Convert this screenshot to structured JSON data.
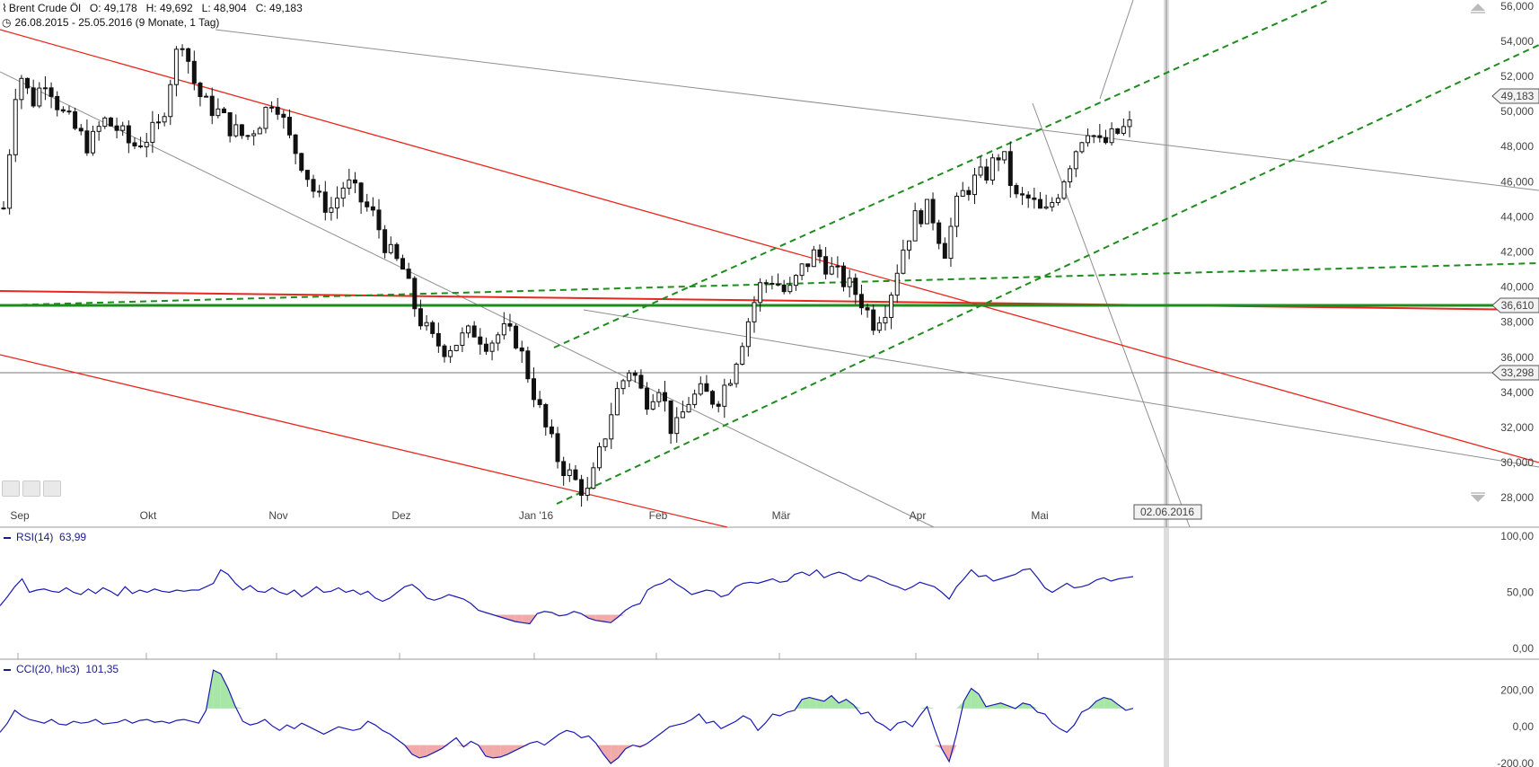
{
  "header": {
    "instrument": "Brent Crude Öl",
    "open": "O: 49,178",
    "high": "H: 49,692",
    "low": "L: 48,904",
    "close": "C: 49,183",
    "range": "26.08.2015 - 25.05.2016 (9 Monate, 1 Tag)"
  },
  "crosshair_date": "02.06.2016",
  "rsi_label": "RSI(14)",
  "rsi_value": "63,99",
  "cci_label": "CCI(20, hlc3)",
  "cci_value": "101,35",
  "colors": {
    "candle": "#111111",
    "support_red": "#e8281e",
    "trend_green": "#1e8c1e",
    "indicator": "#1a1ab4",
    "overbought_fill": "#a8e6a8",
    "oversold_fill": "#f0aaaa",
    "gray_line": "#909090"
  },
  "chart_data": [
    {
      "type": "candlestick",
      "title": "Brent Crude Öl",
      "x_ticks": [
        "Sep",
        "Okt",
        "Nov",
        "Dez",
        "Jan '16",
        "Feb",
        "Mär",
        "Apr",
        "Mai"
      ],
      "y_ticks": [
        "56,000",
        "54,000",
        "52,000",
        "50,000",
        "48,000",
        "46,000",
        "44,000",
        "42,000",
        "40,000",
        "38,000",
        "36,000",
        "34,000",
        "32,000",
        "30,000",
        "28,000"
      ],
      "ylim": [
        27.8,
        56.2
      ],
      "price_labels": [
        "49,183",
        "36,610",
        "33,298"
      ],
      "horizontal_levels": [
        36.61,
        33.298
      ],
      "close_path": [
        [
          0,
          44.5
        ],
        [
          5,
          52.5
        ],
        [
          10,
          50.5
        ],
        [
          15,
          52
        ],
        [
          20,
          50
        ],
        [
          25,
          49
        ],
        [
          30,
          48
        ],
        [
          35,
          49.5
        ],
        [
          40,
          49
        ],
        [
          45,
          48
        ],
        [
          50,
          48.5
        ],
        [
          55,
          49.2
        ],
        [
          60,
          53
        ],
        [
          63,
          54.3
        ],
        [
          66,
          52
        ],
        [
          70,
          50.5
        ],
        [
          75,
          50
        ],
        [
          80,
          49
        ],
        [
          85,
          48.5
        ],
        [
          90,
          49.5
        ],
        [
          95,
          51
        ],
        [
          100,
          48.5
        ],
        [
          105,
          47
        ],
        [
          110,
          45
        ],
        [
          115,
          44.5
        ],
        [
          120,
          46
        ],
        [
          125,
          45
        ],
        [
          130,
          44
        ],
        [
          135,
          42
        ],
        [
          140,
          41
        ],
        [
          145,
          38.5
        ],
        [
          150,
          37
        ],
        [
          155,
          36.5
        ],
        [
          160,
          37
        ],
        [
          165,
          37.5
        ],
        [
          170,
          36.8
        ],
        [
          175,
          37.5
        ],
        [
          180,
          37
        ],
        [
          185,
          34.5
        ],
        [
          190,
          32
        ],
        [
          195,
          30
        ],
        [
          200,
          29
        ],
        [
          205,
          28.2
        ],
        [
          210,
          31
        ],
        [
          215,
          34
        ],
        [
          220,
          35.5
        ],
        [
          225,
          33.5
        ],
        [
          230,
          34.5
        ],
        [
          235,
          31.5
        ],
        [
          240,
          33.5
        ],
        [
          245,
          34
        ],
        [
          250,
          33.5
        ],
        [
          255,
          35
        ],
        [
          260,
          37.5
        ],
        [
          265,
          40
        ],
        [
          270,
          40.5
        ],
        [
          275,
          39.5
        ],
        [
          280,
          41
        ],
        [
          285,
          42
        ],
        [
          290,
          41
        ],
        [
          295,
          40.3
        ],
        [
          300,
          39.5
        ],
        [
          305,
          38
        ],
        [
          310,
          39
        ],
        [
          315,
          42
        ],
        [
          320,
          44
        ],
        [
          325,
          44.5
        ],
        [
          330,
          42
        ],
        [
          335,
          45
        ],
        [
          340,
          46
        ],
        [
          345,
          46.5
        ],
        [
          350,
          47.8
        ],
        [
          355,
          45
        ],
        [
          360,
          45
        ],
        [
          365,
          44
        ],
        [
          370,
          45.5
        ],
        [
          375,
          47.5
        ],
        [
          380,
          49.2
        ],
        [
          385,
          48
        ],
        [
          390,
          48.7
        ],
        [
          395,
          49.18
        ]
      ]
    },
    {
      "type": "line",
      "title": "RSI(14)",
      "y_ticks": [
        "100,00",
        "50,00",
        "0,00"
      ],
      "ylim": [
        0,
        100
      ],
      "values": [
        38,
        46,
        55,
        62,
        50,
        52,
        53,
        51,
        50,
        54,
        50,
        48,
        53,
        49,
        54,
        51,
        47,
        55,
        49,
        52,
        50,
        53,
        51,
        50,
        52,
        51,
        52,
        52,
        55,
        58,
        70,
        66,
        58,
        52,
        56,
        51,
        50,
        54,
        50,
        48,
        52,
        46,
        50,
        55,
        50,
        51,
        54,
        50,
        52,
        48,
        51,
        45,
        42,
        45,
        50,
        55,
        57,
        52,
        45,
        43,
        45,
        48,
        46,
        44,
        40,
        34,
        32,
        30,
        28,
        26,
        24,
        23,
        22,
        31,
        33,
        32,
        29,
        30,
        33,
        31,
        27,
        25,
        24,
        23,
        28,
        34,
        38,
        40,
        52,
        56,
        58,
        62,
        57,
        53,
        48,
        50,
        52,
        51,
        46,
        48,
        55,
        58,
        59,
        58,
        60,
        62,
        59,
        60,
        66,
        68,
        65,
        70,
        63,
        66,
        68,
        66,
        62,
        60,
        65,
        63,
        60,
        57,
        55,
        52,
        55,
        59,
        57,
        55,
        50,
        44,
        55,
        62,
        70,
        64,
        65,
        60,
        62,
        64,
        66,
        70,
        71,
        63,
        54,
        50,
        54,
        58,
        54,
        55,
        57,
        61,
        63,
        60,
        62,
        63,
        64
      ]
    },
    {
      "type": "line",
      "title": "CCI(20, hlc3)",
      "y_ticks": [
        "200,00",
        "0,00",
        "-200,00"
      ],
      "ylim": [
        -200,
        330
      ],
      "values": [
        -30,
        20,
        90,
        60,
        40,
        30,
        20,
        40,
        15,
        10,
        30,
        20,
        25,
        40,
        15,
        20,
        25,
        40,
        20,
        35,
        40,
        25,
        30,
        20,
        35,
        40,
        30,
        20,
        90,
        310,
        290,
        210,
        110,
        30,
        10,
        20,
        40,
        5,
        -20,
        10,
        -10,
        20,
        0,
        -20,
        -40,
        -20,
        0,
        -10,
        -20,
        -10,
        30,
        10,
        -20,
        -40,
        -70,
        -100,
        -150,
        -170,
        -160,
        -140,
        -120,
        -90,
        -60,
        -110,
        -80,
        -100,
        -160,
        -170,
        -165,
        -150,
        -130,
        -110,
        -90,
        -80,
        -100,
        -70,
        -40,
        -20,
        -30,
        -60,
        -50,
        -90,
        -150,
        -200,
        -170,
        -120,
        -100,
        -110,
        -90,
        -60,
        -30,
        0,
        10,
        20,
        40,
        70,
        20,
        30,
        -10,
        10,
        30,
        60,
        40,
        -20,
        20,
        70,
        60,
        80,
        90,
        150,
        160,
        150,
        140,
        170,
        130,
        150,
        120,
        70,
        80,
        30,
        10,
        -20,
        20,
        30,
        0,
        60,
        110,
        -10,
        -120,
        -190,
        -40,
        140,
        210,
        180,
        110,
        120,
        130,
        115,
        100,
        130,
        120,
        80,
        70,
        20,
        -10,
        -30,
        10,
        80,
        100,
        140,
        160,
        150,
        120,
        90,
        101
      ]
    }
  ]
}
